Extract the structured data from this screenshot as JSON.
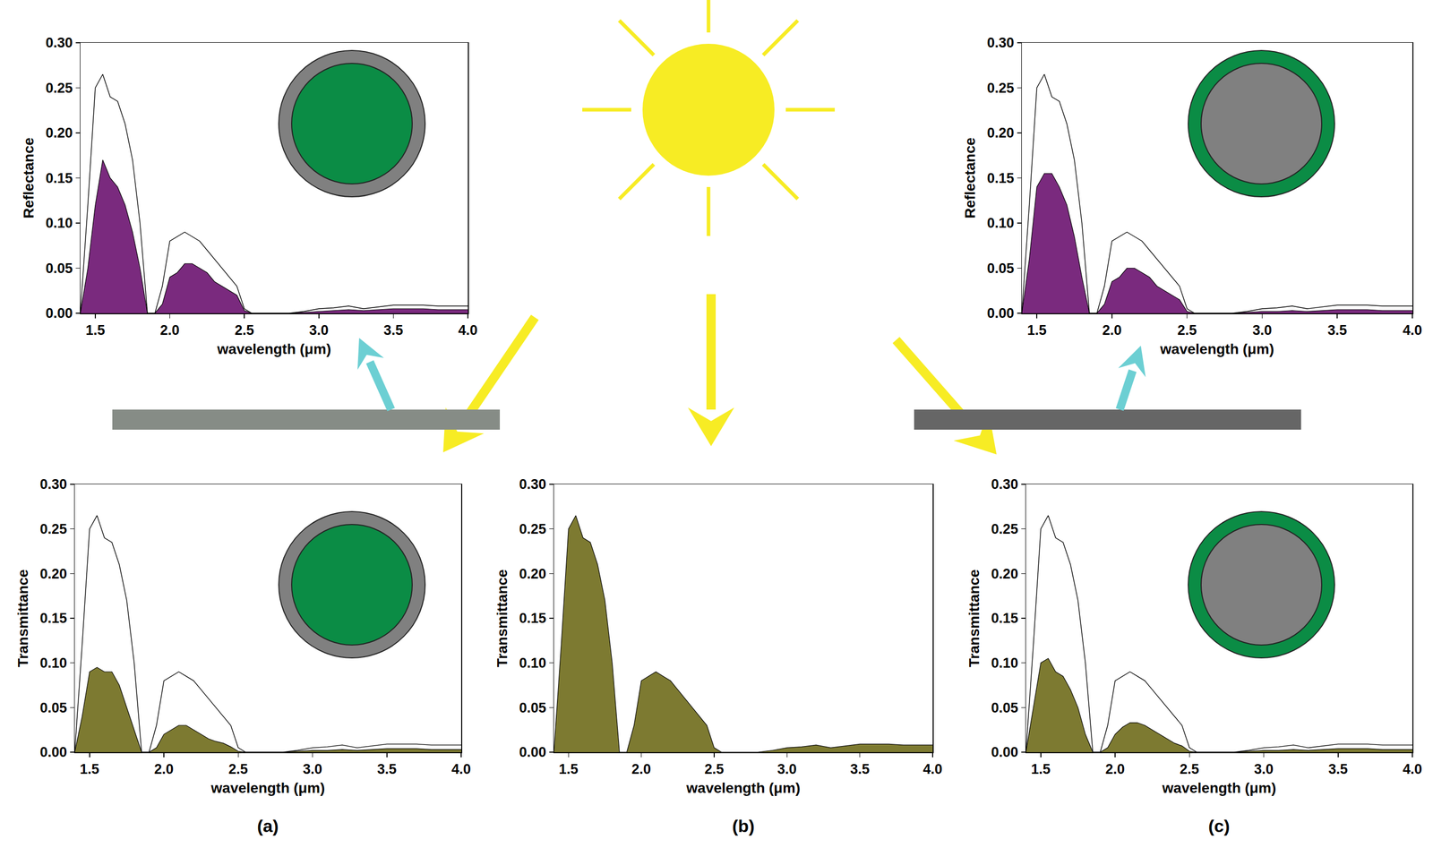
{
  "chart_data": [
    {
      "type": "line",
      "xlabel": "wavelength (μm)",
      "ylabel": "Reflectance",
      "x": [
        1.4,
        1.45,
        1.5,
        1.55,
        1.6,
        1.65,
        1.7,
        1.75,
        1.8,
        1.85,
        1.9,
        1.95,
        2.0,
        2.05,
        2.1,
        2.15,
        2.2,
        2.25,
        2.3,
        2.35,
        2.4,
        2.45,
        2.5,
        2.55,
        2.6,
        2.7,
        2.8,
        2.9,
        3.0,
        3.1,
        3.2,
        3.3,
        3.4,
        3.5,
        3.6,
        3.7,
        3.8,
        3.9,
        4.0
      ],
      "series": [
        {
          "type": "area",
          "color": "#7a2a7e",
          "values": [
            0,
            0.05,
            0.12,
            0.17,
            0.15,
            0.14,
            0.12,
            0.09,
            0.05,
            0,
            0,
            0.01,
            0.04,
            0.045,
            0.055,
            0.055,
            0.05,
            0.045,
            0.035,
            0.03,
            0.025,
            0.02,
            0.003,
            0,
            0,
            0,
            0,
            0.001,
            0.002,
            0.003,
            0.004,
            0.003,
            0.004,
            0.005,
            0.005,
            0.005,
            0.004,
            0.004,
            0.004
          ]
        },
        {
          "type": "line",
          "color": "#000000",
          "values": [
            0,
            0.12,
            0.25,
            0.265,
            0.24,
            0.235,
            0.21,
            0.17,
            0.1,
            0,
            0,
            0.03,
            0.08,
            0.085,
            0.09,
            0.085,
            0.08,
            0.07,
            0.06,
            0.05,
            0.04,
            0.03,
            0.005,
            0,
            0,
            0,
            0,
            0.002,
            0.005,
            0.006,
            0.008,
            0.005,
            0.007,
            0.009,
            0.009,
            0.009,
            0.008,
            0.008,
            0.008
          ]
        }
      ],
      "xlim": [
        1.4,
        4.0
      ],
      "xticks": [
        1.5,
        {
          "value": 2,
          "label": "2.0"
        },
        2.5,
        {
          "value": 3,
          "label": "3.0"
        },
        3.5,
        {
          "value": 4,
          "label": "4.0"
        }
      ],
      "ylim": [
        0,
        0.3
      ],
      "yticks": [
        {
          "value": 0,
          "label": "0.00"
        },
        {
          "value": 0.05,
          "label": "0.05"
        },
        {
          "value": 0.1,
          "label": "0.10"
        },
        {
          "value": 0.15,
          "label": "0.15"
        },
        {
          "value": 0.2,
          "label": "0.20"
        },
        {
          "value": 0.25,
          "label": "0.25"
        },
        {
          "value": 0.3,
          "label": "0.30"
        }
      ],
      "grid": false
    },
    {
      "type": "line",
      "xlabel": "wavelength (μm)",
      "ylabel": "Reflectance",
      "x": [
        1.4,
        1.45,
        1.5,
        1.55,
        1.6,
        1.65,
        1.7,
        1.75,
        1.8,
        1.85,
        1.9,
        1.95,
        2.0,
        2.05,
        2.1,
        2.15,
        2.2,
        2.25,
        2.3,
        2.35,
        2.4,
        2.45,
        2.5,
        2.55,
        2.6,
        2.7,
        2.8,
        2.9,
        3.0,
        3.1,
        3.2,
        3.3,
        3.4,
        3.5,
        3.6,
        3.7,
        3.8,
        3.9,
        4.0
      ],
      "series": [
        {
          "type": "area",
          "color": "#7a2a7e",
          "values": [
            0,
            0.06,
            0.14,
            0.155,
            0.155,
            0.14,
            0.12,
            0.085,
            0.04,
            0,
            0,
            0.01,
            0.035,
            0.04,
            0.05,
            0.05,
            0.045,
            0.04,
            0.03,
            0.025,
            0.02,
            0.015,
            0.002,
            0,
            0,
            0,
            0,
            0.001,
            0.002,
            0.002,
            0.003,
            0.002,
            0.003,
            0.004,
            0.004,
            0.004,
            0.003,
            0.003,
            0.003
          ]
        },
        {
          "type": "line",
          "color": "#000000",
          "values": [
            0,
            0.12,
            0.25,
            0.265,
            0.24,
            0.235,
            0.21,
            0.17,
            0.1,
            0,
            0,
            0.03,
            0.08,
            0.085,
            0.09,
            0.085,
            0.08,
            0.07,
            0.06,
            0.05,
            0.04,
            0.03,
            0.005,
            0,
            0,
            0,
            0,
            0.002,
            0.005,
            0.006,
            0.008,
            0.005,
            0.007,
            0.009,
            0.009,
            0.009,
            0.008,
            0.008,
            0.008
          ]
        }
      ],
      "xlim": [
        1.4,
        4.0
      ],
      "xticks": [
        1.5,
        {
          "value": 2,
          "label": "2.0"
        },
        2.5,
        {
          "value": 3,
          "label": "3.0"
        },
        3.5,
        {
          "value": 4,
          "label": "4.0"
        }
      ],
      "ylim": [
        0,
        0.3
      ],
      "yticks": [
        {
          "value": 0,
          "label": "0.00"
        },
        {
          "value": 0.05,
          "label": "0.05"
        },
        {
          "value": 0.1,
          "label": "0.10"
        },
        {
          "value": 0.15,
          "label": "0.15"
        },
        {
          "value": 0.2,
          "label": "0.20"
        },
        {
          "value": 0.25,
          "label": "0.25"
        },
        {
          "value": 0.3,
          "label": "0.30"
        }
      ],
      "grid": false
    },
    {
      "type": "line",
      "title": "(a)",
      "xlabel": "wavelength (μm)",
      "ylabel": "Transmittance",
      "x": [
        1.4,
        1.45,
        1.5,
        1.55,
        1.6,
        1.65,
        1.7,
        1.75,
        1.8,
        1.85,
        1.9,
        1.95,
        2.0,
        2.05,
        2.1,
        2.15,
        2.2,
        2.25,
        2.3,
        2.35,
        2.4,
        2.45,
        2.5,
        2.55,
        2.6,
        2.7,
        2.8,
        2.9,
        3.0,
        3.1,
        3.2,
        3.3,
        3.4,
        3.5,
        3.6,
        3.7,
        3.8,
        3.9,
        4.0
      ],
      "series": [
        {
          "type": "area",
          "color": "#7d7a31",
          "values": [
            0,
            0.04,
            0.09,
            0.095,
            0.09,
            0.09,
            0.075,
            0.05,
            0.025,
            0,
            0,
            0.005,
            0.02,
            0.025,
            0.03,
            0.03,
            0.025,
            0.02,
            0.015,
            0.012,
            0.01,
            0.006,
            0.001,
            0,
            0,
            0,
            0,
            0.001,
            0.002,
            0.002,
            0.003,
            0.002,
            0.003,
            0.004,
            0.004,
            0.004,
            0.003,
            0.003,
            0.003
          ]
        },
        {
          "type": "line",
          "color": "#000000",
          "values": [
            0,
            0.12,
            0.25,
            0.265,
            0.24,
            0.235,
            0.21,
            0.17,
            0.1,
            0,
            0,
            0.03,
            0.08,
            0.085,
            0.09,
            0.085,
            0.08,
            0.07,
            0.06,
            0.05,
            0.04,
            0.03,
            0.005,
            0,
            0,
            0,
            0,
            0.002,
            0.005,
            0.006,
            0.008,
            0.005,
            0.007,
            0.009,
            0.009,
            0.009,
            0.008,
            0.008,
            0.008
          ]
        }
      ],
      "xlim": [
        1.4,
        4.0
      ],
      "xticks": [
        1.5,
        {
          "value": 2,
          "label": "2.0"
        },
        2.5,
        {
          "value": 3,
          "label": "3.0"
        },
        3.5,
        {
          "value": 4,
          "label": "4.0"
        }
      ],
      "ylim": [
        0,
        0.3
      ],
      "yticks": [
        {
          "value": 0,
          "label": "0.00"
        },
        {
          "value": 0.05,
          "label": "0.05"
        },
        {
          "value": 0.1,
          "label": "0.10"
        },
        {
          "value": 0.15,
          "label": "0.15"
        },
        {
          "value": 0.2,
          "label": "0.20"
        },
        {
          "value": 0.25,
          "label": "0.25"
        },
        {
          "value": 0.3,
          "label": "0.30"
        }
      ],
      "grid": false
    },
    {
      "type": "line",
      "title": "(b)",
      "xlabel": "wavelength (μm)",
      "ylabel": "Transmittance",
      "x": [
        1.4,
        1.45,
        1.5,
        1.55,
        1.6,
        1.65,
        1.7,
        1.75,
        1.8,
        1.85,
        1.9,
        1.95,
        2.0,
        2.05,
        2.1,
        2.15,
        2.2,
        2.25,
        2.3,
        2.35,
        2.4,
        2.45,
        2.5,
        2.55,
        2.6,
        2.7,
        2.8,
        2.9,
        3.0,
        3.1,
        3.2,
        3.3,
        3.4,
        3.5,
        3.6,
        3.7,
        3.8,
        3.9,
        4.0
      ],
      "series": [
        {
          "type": "area",
          "color": "#7d7a31",
          "values": [
            0,
            0.12,
            0.25,
            0.265,
            0.24,
            0.235,
            0.21,
            0.17,
            0.1,
            0,
            0,
            0.03,
            0.08,
            0.085,
            0.09,
            0.085,
            0.08,
            0.07,
            0.06,
            0.05,
            0.04,
            0.03,
            0.005,
            0,
            0,
            0,
            0,
            0.002,
            0.005,
            0.006,
            0.008,
            0.005,
            0.007,
            0.009,
            0.009,
            0.009,
            0.008,
            0.008,
            0.008
          ]
        }
      ],
      "xlim": [
        1.4,
        4.0
      ],
      "xticks": [
        1.5,
        {
          "value": 2,
          "label": "2.0"
        },
        2.5,
        {
          "value": 3,
          "label": "3.0"
        },
        3.5,
        {
          "value": 4,
          "label": "4.0"
        }
      ],
      "ylim": [
        0,
        0.3
      ],
      "yticks": [
        {
          "value": 0,
          "label": "0.00"
        },
        {
          "value": 0.05,
          "label": "0.05"
        },
        {
          "value": 0.1,
          "label": "0.10"
        },
        {
          "value": 0.15,
          "label": "0.15"
        },
        {
          "value": 0.2,
          "label": "0.20"
        },
        {
          "value": 0.25,
          "label": "0.25"
        },
        {
          "value": 0.3,
          "label": "0.30"
        }
      ],
      "grid": false
    },
    {
      "type": "line",
      "title": "(c)",
      "xlabel": "wavelength (μm)",
      "ylabel": "Transmittance",
      "x": [
        1.4,
        1.45,
        1.5,
        1.55,
        1.6,
        1.65,
        1.7,
        1.75,
        1.8,
        1.85,
        1.9,
        1.95,
        2.0,
        2.05,
        2.1,
        2.15,
        2.2,
        2.25,
        2.3,
        2.35,
        2.4,
        2.45,
        2.5,
        2.55,
        2.6,
        2.7,
        2.8,
        2.9,
        3.0,
        3.1,
        3.2,
        3.3,
        3.4,
        3.5,
        3.6,
        3.7,
        3.8,
        3.9,
        4.0
      ],
      "series": [
        {
          "type": "area",
          "color": "#7d7a31",
          "values": [
            0,
            0.05,
            0.1,
            0.105,
            0.09,
            0.085,
            0.07,
            0.05,
            0.02,
            0,
            0,
            0.005,
            0.02,
            0.028,
            0.033,
            0.033,
            0.03,
            0.025,
            0.02,
            0.015,
            0.01,
            0.007,
            0.001,
            0,
            0,
            0,
            0,
            0.001,
            0.002,
            0.002,
            0.003,
            0.002,
            0.003,
            0.004,
            0.004,
            0.004,
            0.003,
            0.003,
            0.003
          ]
        },
        {
          "type": "line",
          "color": "#000000",
          "values": [
            0,
            0.12,
            0.25,
            0.265,
            0.24,
            0.235,
            0.21,
            0.17,
            0.1,
            0,
            0,
            0.03,
            0.08,
            0.085,
            0.09,
            0.085,
            0.08,
            0.07,
            0.06,
            0.05,
            0.04,
            0.03,
            0.005,
            0,
            0,
            0,
            0,
            0.002,
            0.005,
            0.006,
            0.008,
            0.005,
            0.007,
            0.009,
            0.009,
            0.009,
            0.008,
            0.008,
            0.008
          ]
        }
      ],
      "xlim": [
        1.4,
        4.0
      ],
      "xticks": [
        1.5,
        {
          "value": 2,
          "label": "2.0"
        },
        2.5,
        {
          "value": 3,
          "label": "3.0"
        },
        3.5,
        {
          "value": 4,
          "label": "4.0"
        }
      ],
      "ylim": [
        0,
        0.3
      ],
      "yticks": [
        {
          "value": 0,
          "label": "0.00"
        },
        {
          "value": 0.05,
          "label": "0.05"
        },
        {
          "value": 0.1,
          "label": "0.10"
        },
        {
          "value": 0.15,
          "label": "0.15"
        },
        {
          "value": 0.2,
          "label": "0.20"
        },
        {
          "value": 0.25,
          "label": "0.25"
        },
        {
          "value": 0.3,
          "label": "0.30"
        }
      ],
      "grid": false
    }
  ]
}
